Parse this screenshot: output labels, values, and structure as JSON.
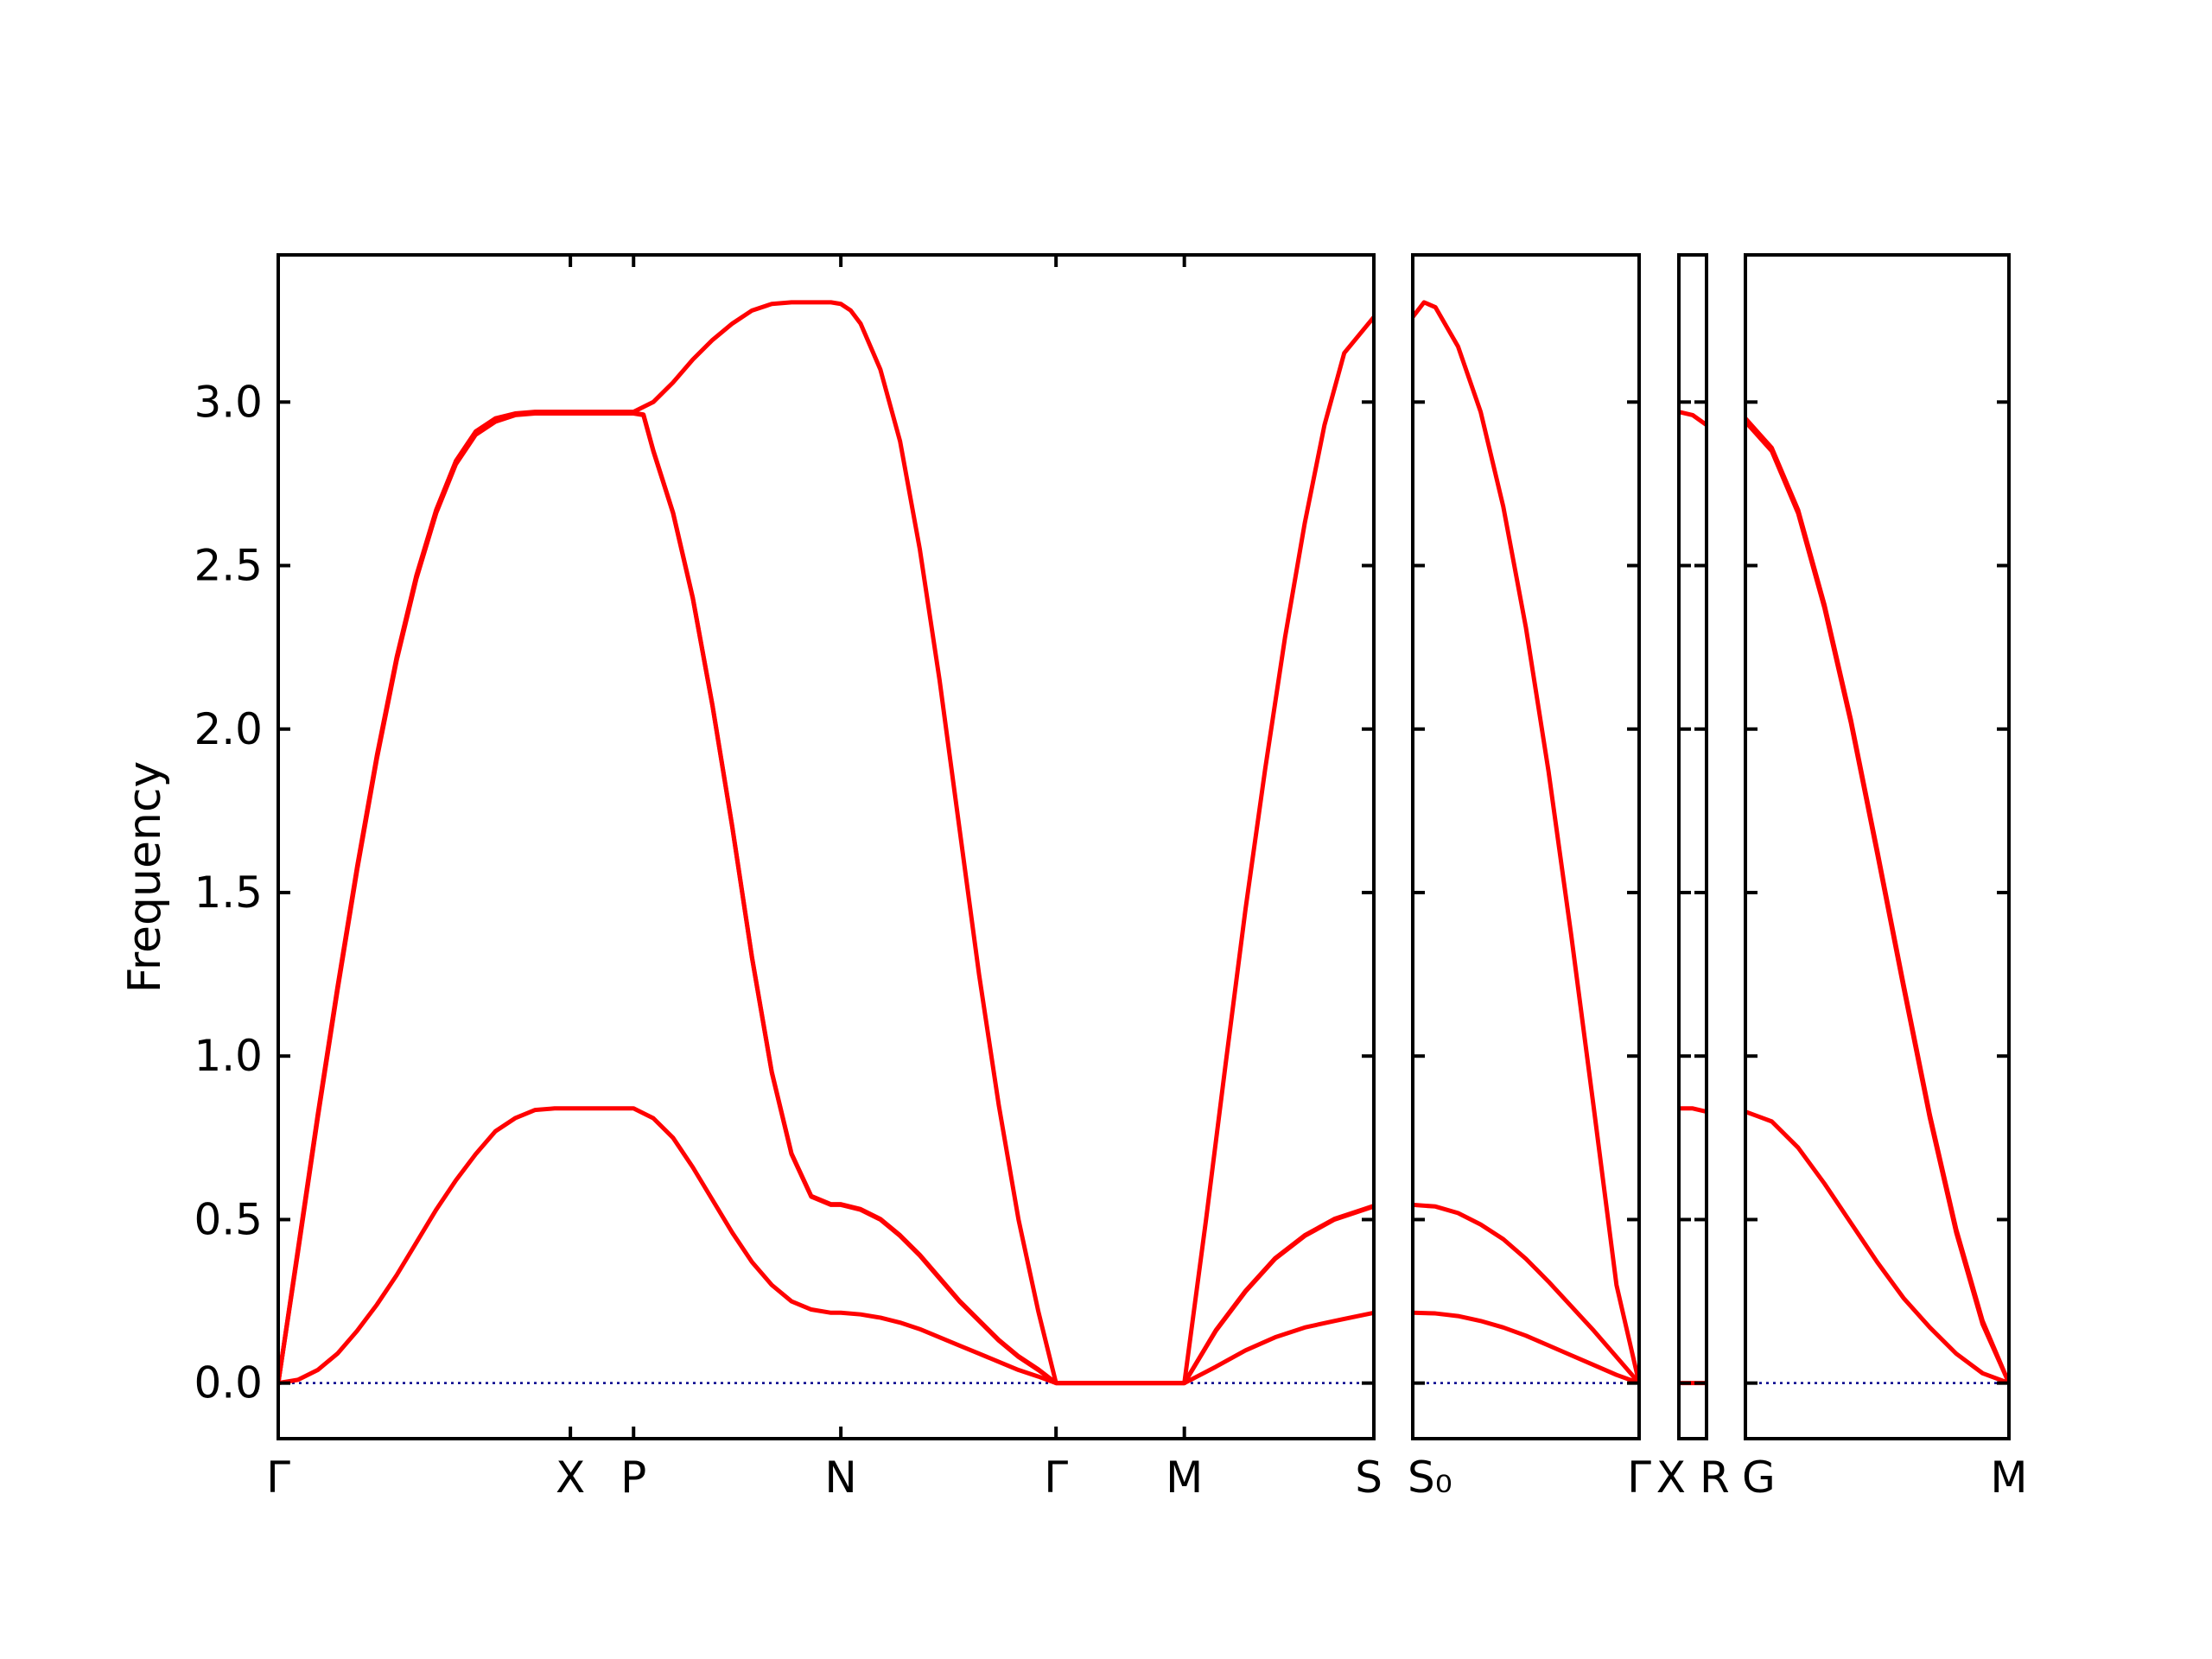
{
  "chart_data": {
    "type": "line",
    "ylabel": "Frequency",
    "ylim": [
      -0.17,
      3.45
    ],
    "yticks": [
      "0.0",
      "0.5",
      "1.0",
      "1.5",
      "2.0",
      "2.5",
      "3.0"
    ],
    "band_color": "#ff0000",
    "zero_line_color": "#00008b",
    "segments": [
      {
        "xlim": [
          0,
          5.55
        ],
        "x_labels": [
          {
            "x": 0,
            "label": "Γ"
          },
          {
            "x": 1.48,
            "label": "X"
          },
          {
            "x": 1.8,
            "label": "P"
          },
          {
            "x": 2.85,
            "label": "N"
          },
          {
            "x": 3.94,
            "label": "Γ"
          },
          {
            "x": 4.59,
            "label": "M"
          },
          {
            "x": 5.55,
            "label": "S"
          }
        ],
        "bands": [
          {
            "x": [
              0,
              0.1,
              0.2,
              0.3,
              0.4,
              0.5,
              0.6,
              0.7,
              0.8,
              0.9,
              1.0,
              1.1,
              1.2,
              1.3,
              1.4,
              1.48,
              1.8,
              1.9,
              2.0,
              2.1,
              2.2,
              2.3,
              2.4,
              2.5,
              2.6,
              2.7,
              2.8,
              2.85,
              2.95,
              3.05,
              3.15,
              3.25,
              3.35,
              3.45,
              3.55,
              3.65,
              3.75,
              3.85,
              3.94,
              4.59,
              4.75,
              4.9,
              5.05,
              5.2,
              5.35,
              5.55
            ],
            "y": [
              0,
              0.01,
              0.04,
              0.09,
              0.16,
              0.24,
              0.33,
              0.43,
              0.53,
              0.62,
              0.7,
              0.77,
              0.81,
              0.835,
              0.84,
              0.84,
              0.84,
              0.81,
              0.75,
              0.66,
              0.56,
              0.46,
              0.37,
              0.3,
              0.25,
              0.225,
              0.215,
              0.215,
              0.21,
              0.2,
              0.185,
              0.165,
              0.14,
              0.115,
              0.09,
              0.065,
              0.04,
              0.02,
              0,
              0,
              0.05,
              0.1,
              0.14,
              0.17,
              0.19,
              0.215
            ]
          },
          {
            "x": [
              0,
              0.1,
              0.2,
              0.3,
              0.4,
              0.5,
              0.6,
              0.7,
              0.8,
              0.9,
              1.0,
              1.1,
              1.2,
              1.3,
              1.4,
              1.48,
              1.8,
              1.85,
              1.9,
              2.0,
              2.1,
              2.2,
              2.3,
              2.4,
              2.5,
              2.6,
              2.7,
              2.8,
              2.85,
              2.95,
              3.05,
              3.15,
              3.25,
              3.35,
              3.45,
              3.55,
              3.65,
              3.75,
              3.85,
              3.94,
              4.59,
              4.75,
              4.9,
              5.05,
              5.2,
              5.35,
              5.55
            ],
            "y": [
              0,
              0.4,
              0.81,
              1.2,
              1.57,
              1.91,
              2.21,
              2.46,
              2.66,
              2.81,
              2.9,
              2.94,
              2.96,
              2.965,
              2.965,
              2.965,
              2.965,
              2.96,
              2.85,
              2.66,
              2.4,
              2.07,
              1.7,
              1.3,
              0.95,
              0.7,
              0.57,
              0.545,
              0.545,
              0.53,
              0.5,
              0.45,
              0.39,
              0.32,
              0.25,
              0.19,
              0.13,
              0.08,
              0.04,
              0,
              0,
              0.16,
              0.28,
              0.38,
              0.45,
              0.5,
              0.54
            ]
          },
          {
            "x": [
              0,
              0.1,
              0.2,
              0.3,
              0.4,
              0.5,
              0.6,
              0.7,
              0.8,
              0.9,
              1.0,
              1.1,
              1.2,
              1.3,
              1.4,
              1.48,
              1.8,
              1.9,
              2.0,
              2.1,
              2.2,
              2.3,
              2.4,
              2.5,
              2.6,
              2.7,
              2.8,
              2.85,
              2.9,
              2.95,
              3.05,
              3.15,
              3.25,
              3.35,
              3.45,
              3.55,
              3.65,
              3.75,
              3.85,
              3.94,
              4.59,
              4.7,
              4.8,
              4.9,
              5.0,
              5.1,
              5.2,
              5.3,
              5.4,
              5.55
            ],
            "y": [
              0,
              0.41,
              0.82,
              1.21,
              1.58,
              1.92,
              2.22,
              2.47,
              2.67,
              2.82,
              2.91,
              2.95,
              2.965,
              2.97,
              2.97,
              2.97,
              2.97,
              3.0,
              3.06,
              3.13,
              3.19,
              3.24,
              3.28,
              3.3,
              3.305,
              3.305,
              3.305,
              3.3,
              3.28,
              3.24,
              3.1,
              2.88,
              2.55,
              2.15,
              1.7,
              1.25,
              0.85,
              0.5,
              0.22,
              0,
              0,
              0.5,
              0.98,
              1.45,
              1.88,
              2.28,
              2.63,
              2.93,
              3.15,
              3.26
            ]
          },
          {
            "x": [
              0,
              0.1,
              0.2,
              0.3,
              0.4,
              0.5,
              0.6,
              0.7,
              0.8,
              0.9,
              1.0,
              1.1,
              1.2,
              1.3,
              1.4,
              1.48,
              1.8,
              1.85,
              1.9,
              2.0,
              2.1,
              2.2,
              2.3,
              2.4,
              2.5,
              2.6,
              2.7,
              2.8,
              2.85,
              2.95,
              3.05,
              3.15,
              3.25,
              3.35,
              3.45,
              3.55,
              3.65,
              3.75,
              3.85,
              3.94,
              4.59,
              4.75,
              4.9,
              5.05,
              5.2,
              5.35,
              5.55
            ],
            "y": [
              0,
              0.405,
              0.815,
              1.205,
              1.575,
              1.915,
              2.215,
              2.465,
              2.665,
              2.815,
              2.905,
              2.945,
              2.962,
              2.967,
              2.967,
              2.967,
              2.967,
              2.962,
              2.852,
              2.662,
              2.402,
              2.072,
              1.702,
              1.302,
              0.952,
              0.702,
              0.572,
              0.547,
              0.547,
              0.532,
              0.502,
              0.452,
              0.392,
              0.322,
              0.252,
              0.192,
              0.132,
              0.082,
              0.042,
              0,
              0,
              0.162,
              0.282,
              0.382,
              0.452,
              0.502,
              0.542
            ]
          }
        ]
      },
      {
        "xlim": [
          0,
          1.0
        ],
        "x_labels": [
          {
            "x": 0,
            "label": "S₀"
          },
          {
            "x": 1.0,
            "label": "Γ"
          }
        ],
        "bands": [
          {
            "x": [
              0,
              0.1,
              0.2,
              0.3,
              0.4,
              0.5,
              0.6,
              0.7,
              0.8,
              0.9,
              1.0
            ],
            "y": [
              0.215,
              0.213,
              0.205,
              0.19,
              0.17,
              0.145,
              0.115,
              0.085,
              0.055,
              0.025,
              0
            ]
          },
          {
            "x": [
              0,
              0.1,
              0.2,
              0.3,
              0.4,
              0.5,
              0.6,
              0.7,
              0.8,
              0.9,
              1.0
            ],
            "y": [
              0.545,
              0.54,
              0.52,
              0.485,
              0.44,
              0.38,
              0.31,
              0.235,
              0.16,
              0.08,
              0
            ]
          },
          {
            "x": [
              0,
              0.05,
              0.1,
              0.2,
              0.3,
              0.4,
              0.5,
              0.6,
              0.7,
              0.8,
              0.9,
              1.0
            ],
            "y": [
              3.26,
              3.305,
              3.29,
              3.17,
              2.97,
              2.68,
              2.31,
              1.87,
              1.37,
              0.84,
              0.3,
              0
            ]
          }
        ]
      },
      {
        "xlim": [
          0,
          1.0
        ],
        "x_labels": [
          {
            "x": 0,
            "label": "X"
          },
          {
            "x": 1.0,
            "label": "R"
          }
        ],
        "bands": [
          {
            "x": [
              0,
              1.0
            ],
            "y": [
              0,
              0
            ]
          },
          {
            "x": [
              0,
              0.5,
              1.0
            ],
            "y": [
              0.84,
              0.84,
              0.83
            ]
          },
          {
            "x": [
              0,
              0.5,
              1.0
            ],
            "y": [
              2.97,
              2.96,
              2.93
            ]
          }
        ]
      },
      {
        "xlim": [
          0,
          1.0
        ],
        "x_labels": [
          {
            "x": 0,
            "label": "G"
          },
          {
            "x": 1.0,
            "label": "M"
          }
        ],
        "bands": [
          {
            "x": [
              0,
              0.1,
              0.2,
              0.3,
              0.4,
              0.5,
              0.6,
              0.7,
              0.8,
              0.9,
              1.0
            ],
            "y": [
              0.83,
              0.8,
              0.72,
              0.61,
              0.49,
              0.37,
              0.26,
              0.17,
              0.09,
              0.03,
              0
            ]
          },
          {
            "x": [
              0,
              0.1,
              0.2,
              0.3,
              0.4,
              0.5,
              0.6,
              0.7,
              0.8,
              0.9,
              1.0
            ],
            "y": [
              2.95,
              2.86,
              2.67,
              2.38,
              2.03,
              1.63,
              1.22,
              0.82,
              0.47,
              0.19,
              0
            ]
          },
          {
            "x": [
              0,
              0.1,
              0.2,
              0.3,
              0.4,
              0.5,
              0.6,
              0.7,
              0.8,
              0.9,
              1.0
            ],
            "y": [
              2.94,
              2.85,
              2.66,
              2.37,
              2.02,
              1.62,
              1.21,
              0.81,
              0.46,
              0.18,
              0
            ]
          }
        ]
      }
    ]
  }
}
